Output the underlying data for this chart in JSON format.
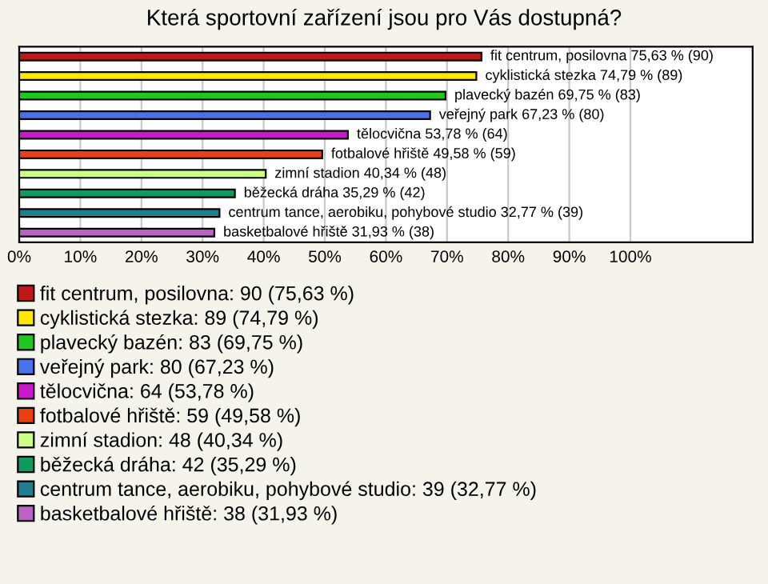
{
  "chart_data": {
    "type": "bar",
    "orientation": "horizontal",
    "title": "Která sportovní zařízení jsou pro Vás dostupná?",
    "categories": [
      null,
      null,
      null,
      null,
      null,
      null,
      null,
      null,
      null,
      null
    ],
    "series": [
      {
        "name": "fit centrum, posilovna: 90 (75,63 %)",
        "color": "#c01818",
        "values": [
          75.63,
          null,
          null,
          null,
          null,
          null,
          null,
          null,
          null,
          null
        ],
        "value_labels": [
          "fit centrum, posilovna 75,63 % (90)",
          null,
          null,
          null,
          null,
          null,
          null,
          null,
          null,
          null
        ]
      },
      {
        "name": "cyklistická stezka: 89 (74,79 %)",
        "color": "#ffe800",
        "values": [
          null,
          74.79,
          null,
          null,
          null,
          null,
          null,
          null,
          null,
          null
        ],
        "value_labels": [
          null,
          "cyklistická stezka 74,79 % (89)",
          null,
          null,
          null,
          null,
          null,
          null,
          null,
          null
        ]
      },
      {
        "name": "plavecký bazén: 83 (69,75 %)",
        "color": "#1ec81e",
        "values": [
          null,
          null,
          69.75,
          null,
          null,
          null,
          null,
          null,
          null,
          null
        ],
        "value_labels": [
          null,
          null,
          "plavecký bazén 69,75 % (83)",
          null,
          null,
          null,
          null,
          null,
          null,
          null
        ]
      },
      {
        "name": "veřejný park: 80 (67,23 %)",
        "color": "#4a72e8",
        "values": [
          null,
          null,
          null,
          67.23,
          null,
          null,
          null,
          null,
          null,
          null
        ],
        "value_labels": [
          null,
          null,
          null,
          "veřejný park 67,23 % (80)",
          null,
          null,
          null,
          null,
          null,
          null
        ]
      },
      {
        "name": "tělocvična: 64 (53,78 %)",
        "color": "#cc18cc",
        "values": [
          null,
          null,
          null,
          null,
          53.78,
          null,
          null,
          null,
          null,
          null
        ],
        "value_labels": [
          null,
          null,
          null,
          null,
          "tělocvična 53,78 % (64)",
          null,
          null,
          null,
          null,
          null
        ]
      },
      {
        "name": "fotbalové hřiště: 59 (49,58 %)",
        "color": "#e84010",
        "values": [
          null,
          null,
          null,
          null,
          null,
          49.58,
          null,
          null,
          null,
          null
        ],
        "value_labels": [
          null,
          null,
          null,
          null,
          null,
          "fotbalové hřiště 49,58 % (59)",
          null,
          null,
          null,
          null
        ]
      },
      {
        "name": "zimní stadion: 48 (40,34 %)",
        "color": "#ccff88",
        "values": [
          null,
          null,
          null,
          null,
          null,
          null,
          40.34,
          null,
          null,
          null
        ],
        "value_labels": [
          null,
          null,
          null,
          null,
          null,
          null,
          "zimní stadion 40,34 % (48)",
          null,
          null,
          null
        ]
      },
      {
        "name": "běžecká dráha: 42 (35,29 %)",
        "color": "#119960",
        "values": [
          null,
          null,
          null,
          null,
          null,
          null,
          null,
          35.29,
          null,
          null
        ],
        "value_labels": [
          null,
          null,
          null,
          null,
          null,
          null,
          null,
          "běžecká dráha 35,29 % (42)",
          null,
          null
        ]
      },
      {
        "name": "centrum tance, aerobiku, pohybové studio: 39 (32,77 %)",
        "color": "#1f7f8f",
        "values": [
          null,
          null,
          null,
          null,
          null,
          null,
          null,
          null,
          32.77,
          null
        ],
        "value_labels": [
          null,
          null,
          null,
          null,
          null,
          null,
          null,
          null,
          "centrum tance, aerobiku, pohybové studio 32,77 % (39)",
          null
        ]
      },
      {
        "name": "basketbalové hřiště: 38 (31,93 %)",
        "color": "#b862c4",
        "values": [
          null,
          null,
          null,
          null,
          null,
          null,
          null,
          null,
          null,
          31.93
        ],
        "value_labels": [
          null,
          null,
          null,
          null,
          null,
          null,
          null,
          null,
          null,
          "basketbalové hřiště 31,93 % (38)"
        ]
      }
    ],
    "xlim": [
      0,
      120
    ],
    "xticks": [
      {
        "value": 0,
        "label": "0%"
      },
      {
        "value": 10,
        "label": "10%"
      },
      {
        "value": 20,
        "label": "20%"
      },
      {
        "value": 30,
        "label": "30%"
      },
      {
        "value": 40,
        "label": "40%"
      },
      {
        "value": 50,
        "label": "50%"
      },
      {
        "value": 60,
        "label": "60%"
      },
      {
        "value": 70,
        "label": "70%"
      },
      {
        "value": 80,
        "label": "80%"
      },
      {
        "value": 90,
        "label": "90%"
      },
      {
        "value": 100,
        "label": "100%"
      }
    ],
    "grid": "x",
    "legend": "bottom",
    "tick_labels": "x"
  }
}
